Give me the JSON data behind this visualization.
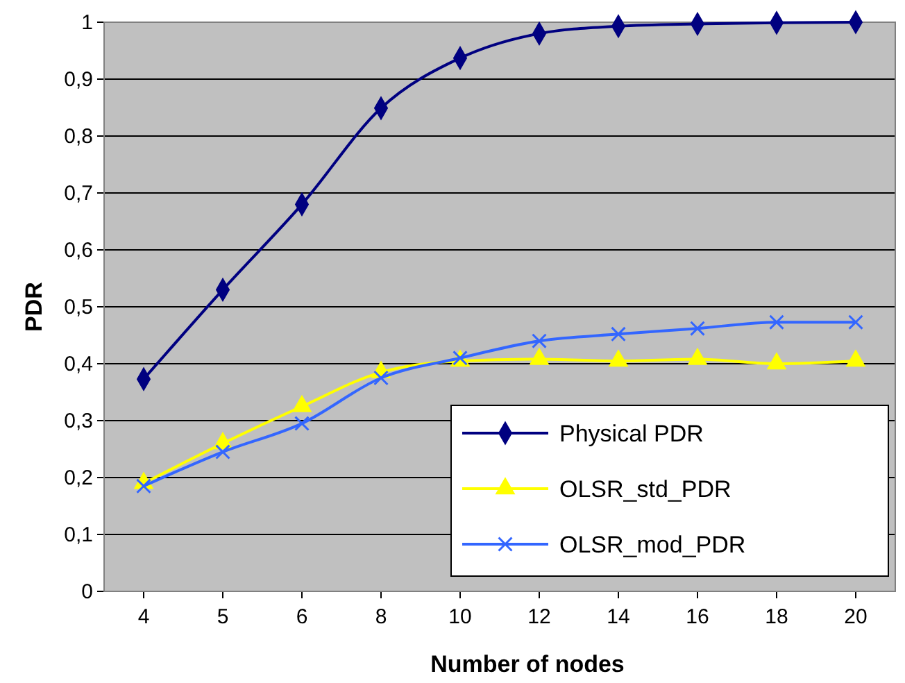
{
  "chart_data": {
    "type": "line",
    "xlabel": "Number of nodes",
    "ylabel": "PDR",
    "categories": [
      "4",
      "5",
      "6",
      "8",
      "10",
      "12",
      "14",
      "16",
      "18",
      "20"
    ],
    "ylim": [
      0,
      1
    ],
    "yticks": [
      0,
      {
        "value": 0.1,
        "label": "0,1"
      },
      {
        "value": 0.2,
        "label": "0,2"
      },
      {
        "value": 0.3,
        "label": "0,3"
      },
      {
        "value": 0.4,
        "label": "0,4"
      },
      {
        "value": 0.5,
        "label": "0,5"
      },
      {
        "value": 0.6,
        "label": "0,6"
      },
      {
        "value": 0.7,
        "label": "0,7"
      },
      {
        "value": 0.8,
        "label": "0,8"
      },
      {
        "value": 0.9,
        "label": "0,9"
      },
      1
    ],
    "grid": "y",
    "legend": "bottom right",
    "line_style": "solid",
    "series": [
      {
        "name": "Physical PDR",
        "color": "#000080",
        "marker": "diamond",
        "values": [
          0.373,
          0.53,
          0.68,
          0.849,
          0.937,
          0.98,
          0.993,
          0.997,
          0.999,
          1.0
        ]
      },
      {
        "name": "OLSR_std_PDR",
        "color": "#ffff00",
        "marker": "triangle",
        "values": [
          0.19,
          0.26,
          0.325,
          0.385,
          0.405,
          0.408,
          0.405,
          0.408,
          0.4,
          0.405
        ]
      },
      {
        "name": "OLSR_mod_PDR",
        "color": "#3366ff",
        "marker": "cross",
        "values": [
          0.185,
          0.245,
          0.295,
          0.375,
          0.41,
          0.44,
          0.452,
          0.462,
          0.473,
          0.473
        ]
      }
    ]
  }
}
